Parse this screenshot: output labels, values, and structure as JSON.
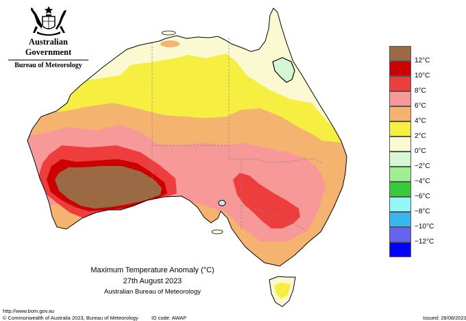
{
  "header": {
    "government": "Australian Government",
    "bureau": "Bureau of Meteorology",
    "logo_icon": "coat-of-arms-icon"
  },
  "map": {
    "title": "Maximum Temperature Anomaly (°C)",
    "date": "27th August 2023",
    "organisation": "Australian Bureau of Meteorology",
    "anomaly_colors": {
      "above_12": "#9b6a44",
      "10_to_12": "#cc0000",
      "8_to_10": "#ee3d3d",
      "6_to_8": "#f89999",
      "4_to_6": "#f4b36f",
      "2_to_4": "#f6ef41",
      "0_to_2": "#fbf9d2",
      "ocean": "#ffffff"
    }
  },
  "legend": {
    "items": [
      {
        "label": "12°C",
        "color": "#9b6a44"
      },
      {
        "label": "10°C",
        "color": "#cc0000"
      },
      {
        "label": "8°C",
        "color": "#ee3d3d"
      },
      {
        "label": "6°C",
        "color": "#f89999"
      },
      {
        "label": "4°C",
        "color": "#f4b36f"
      },
      {
        "label": "2°C",
        "color": "#f6ef41"
      },
      {
        "label": "0°C",
        "color": "#fbf9d2"
      },
      {
        "label": "−2°C",
        "color": "#d6f7d4"
      },
      {
        "label": "−4°C",
        "color": "#a0ee92"
      },
      {
        "label": "−6°C",
        "color": "#37cc37"
      },
      {
        "label": "−8°C",
        "color": "#95f6f8"
      },
      {
        "label": "−10°C",
        "color": "#38b7ee"
      },
      {
        "label": "−12°C",
        "color": "#6464ee"
      },
      {
        "label": "",
        "color": "#0000ff"
      }
    ]
  },
  "footer": {
    "url": "http://www.bom.gov.au",
    "copyright": "© Commonwealth of Australia 2023, Bureau of Meteorology",
    "id_code": "ID code: AWAP",
    "issued": "Issued: 28/08/2023"
  }
}
